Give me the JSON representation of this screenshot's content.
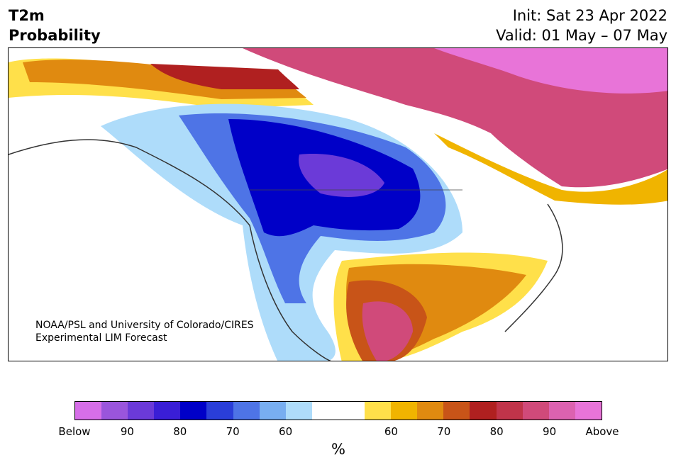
{
  "header": {
    "title_line1": "T2m",
    "title_line2": "Probability",
    "init": "Init: Sat 23 Apr 2022",
    "valid": "Valid: 01 May – 07 May"
  },
  "map": {
    "credit_line1": "NOAA/PSL and University of Colorado/CIRES",
    "credit_line2": "Experimental LIM Forecast"
  },
  "colorbar": {
    "unit": "%",
    "colors": [
      "#d66ee8",
      "#9a55dc",
      "#6b3ad8",
      "#3a1ed6",
      "#0000c8",
      "#2a3ed8",
      "#4e74e6",
      "#78aef0",
      "#aedcfa",
      "#ffffff",
      "#ffffff",
      "#ffe04a",
      "#f0b400",
      "#e08a10",
      "#c85418",
      "#b02020",
      "#c0344a",
      "#d04a7a",
      "#dc62b0",
      "#e874d8"
    ],
    "tick_labels": [
      "Below",
      "90",
      "80",
      "70",
      "60",
      "60",
      "70",
      "80",
      "90",
      "Above"
    ]
  }
}
